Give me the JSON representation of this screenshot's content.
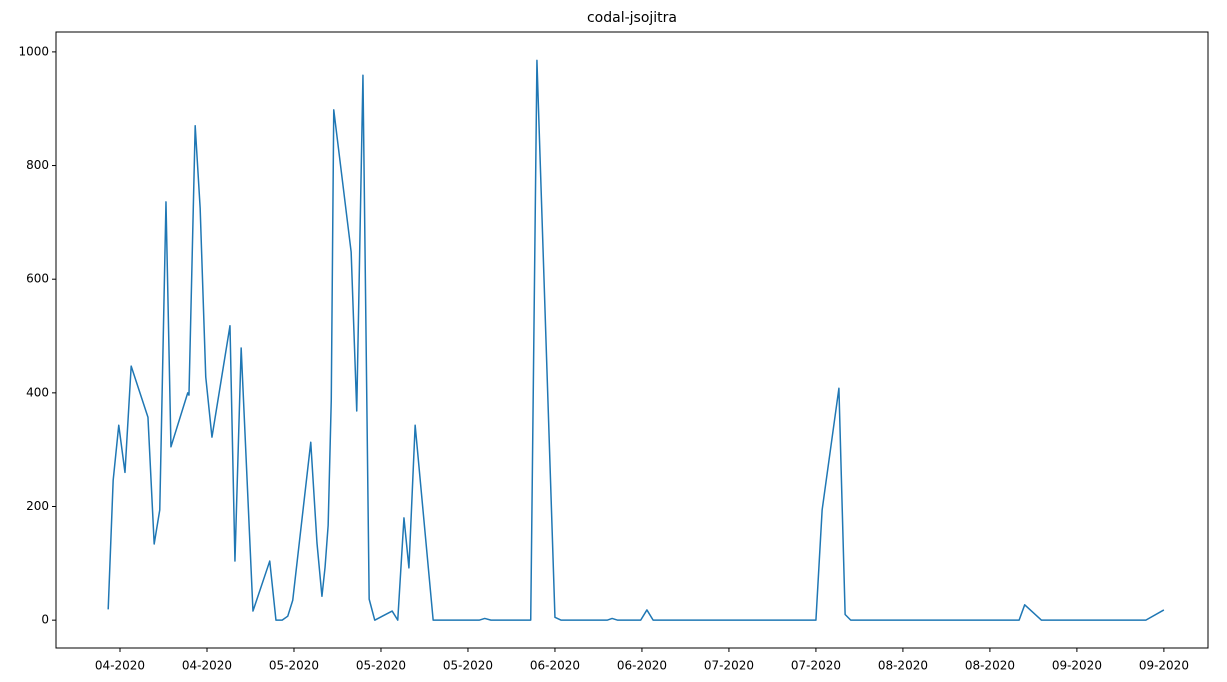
{
  "chart_data": {
    "type": "line",
    "title": "codal-jsojitra",
    "x": [
      -1.9,
      -1.1,
      -0.2,
      0.8,
      1.8,
      4.5,
      5.5,
      6.4,
      7.4,
      8.2,
      10.9,
      11.1,
      12.1,
      12.9,
      13.8,
      14.8,
      17.7,
      18.5,
      19.5,
      21.4,
      24.1,
      25.1,
      26.1,
      27.0,
      27.8,
      30.7,
      31.7,
      32.5,
      33.0,
      33.5,
      34.0,
      34.4,
      37.2,
      38.1,
      39.1,
      40.1,
      41.0,
      43.8,
      44.7,
      45.7,
      46.5,
      47.5,
      50.4,
      57.8,
      58.7,
      59.7,
      66.1,
      67.1,
      70.0,
      71.0,
      78.4,
      79.2,
      80.1,
      83.8,
      84.8,
      85.8,
      112.0,
      113.0,
      115.7,
      116.7,
      117.6,
      144.7,
      145.6,
      148.3,
      165.1,
      168.0
    ],
    "series": [
      {
        "color": "#1f77b4",
        "values": [
          19,
          246,
          343,
          260,
          447,
          357,
          134,
          194,
          736,
          305,
          400,
          396,
          870,
          725,
          428,
          322,
          518,
          104,
          479,
          16,
          104,
          0,
          0,
          7,
          35,
          313,
          136,
          42,
          93,
          167,
          387,
          898,
          648,
          368,
          959,
          37,
          0,
          16,
          0,
          180,
          92,
          343,
          0,
          0,
          3,
          0,
          0,
          985,
          5,
          0,
          0,
          3,
          0,
          0,
          18,
          0,
          0,
          194,
          408,
          10,
          0,
          0,
          27,
          0,
          0,
          18
        ]
      }
    ],
    "xlim": [
      -10.3,
      175.1
    ],
    "ylim": [
      -49,
      1035
    ],
    "xticks": [
      {
        "value": 0,
        "label": "04-2020"
      },
      {
        "value": 14,
        "label": "04-2020"
      },
      {
        "value": 28,
        "label": "05-2020"
      },
      {
        "value": 42,
        "label": "05-2020"
      },
      {
        "value": 56,
        "label": "05-2020"
      },
      {
        "value": 70,
        "label": "06-2020"
      },
      {
        "value": 84,
        "label": "06-2020"
      },
      {
        "value": 98,
        "label": "07-2020"
      },
      {
        "value": 112,
        "label": "07-2020"
      },
      {
        "value": 126,
        "label": "08-2020"
      },
      {
        "value": 140,
        "label": "08-2020"
      },
      {
        "value": 154,
        "label": "09-2020"
      },
      {
        "value": 168,
        "label": "09-2020"
      }
    ],
    "yticks": [
      0,
      200,
      400,
      600,
      800,
      1000
    ]
  }
}
